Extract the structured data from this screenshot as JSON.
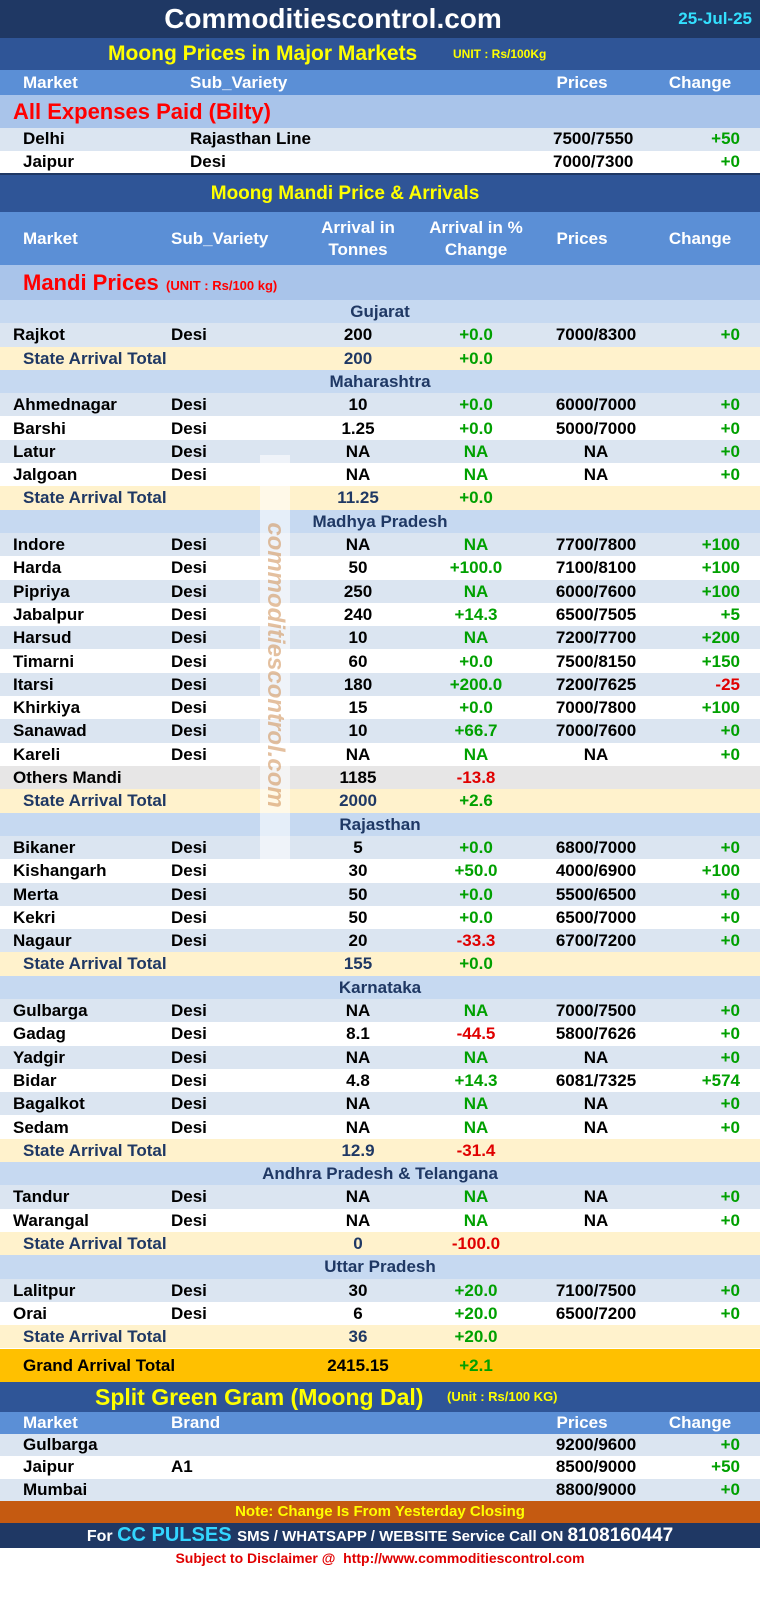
{
  "header": {
    "title": "Commoditiescontrol.com",
    "date": "25-Jul-25"
  },
  "major_markets": {
    "title": "Moong Prices in Major Markets",
    "unit": "UNIT : Rs/100Kg",
    "columns": [
      "Market",
      "Sub_Variety",
      "Prices",
      "Change"
    ],
    "section": "All Expenses Paid (Bilty)",
    "rows": [
      [
        "Delhi",
        "Rajasthan Line",
        "7500/7550",
        "+50"
      ],
      [
        "Jaipur",
        "Desi",
        "7000/7300",
        "+0"
      ]
    ]
  },
  "mandi": {
    "title": "Moong Mandi Price & Arrivals",
    "columns": [
      "Market",
      "Sub_Variety",
      "Arrival in Tonnes",
      "Arrival  in % Change",
      "Prices",
      "Change"
    ],
    "section": "Mandi Prices",
    "unit": "(UNIT : Rs/100 kg)",
    "states": [
      {
        "name": "Gujarat",
        "rows": [
          [
            "Rajkot",
            "Desi",
            "200",
            "+0.0",
            "7000/8300",
            "+0"
          ]
        ],
        "total": [
          "State Arrival Total",
          "200",
          "+0.0"
        ]
      },
      {
        "name": "Maharashtra",
        "rows": [
          [
            "Ahmednagar",
            "Desi",
            "10",
            "+0.0",
            "6000/7000",
            "+0"
          ],
          [
            "Barshi",
            "Desi",
            "1.25",
            "+0.0",
            "5000/7000",
            "+0"
          ],
          [
            "Latur",
            "Desi",
            "NA",
            "NA",
            "NA",
            "+0"
          ],
          [
            "Jalgoan",
            "Desi",
            "NA",
            "NA",
            "NA",
            "+0"
          ]
        ],
        "total": [
          "State Arrival Total",
          "11.25",
          "+0.0"
        ]
      },
      {
        "name": "Madhya Pradesh",
        "rows": [
          [
            "Indore",
            "Desi",
            "NA",
            "NA",
            "7700/7800",
            "+100"
          ],
          [
            "Harda",
            "Desi",
            "50",
            "+100.0",
            "7100/8100",
            "+100"
          ],
          [
            "Pipriya",
            "Desi",
            "250",
            "NA",
            "6000/7600",
            "+100"
          ],
          [
            "Jabalpur",
            "Desi",
            "240",
            "+14.3",
            "6500/7505",
            "+5"
          ],
          [
            "Harsud",
            "Desi",
            "10",
            "NA",
            "7200/7700",
            "+200"
          ],
          [
            "Timarni",
            "Desi",
            "60",
            "+0.0",
            "7500/8150",
            "+150"
          ],
          [
            "Itarsi",
            "Desi",
            "180",
            "+200.0",
            "7200/7625",
            "-25"
          ],
          [
            "Khirkiya",
            "Desi",
            "15",
            "+0.0",
            "7000/7800",
            "+100"
          ],
          [
            "Sanawad",
            "Desi",
            "10",
            "+66.7",
            "7000/7600",
            "+0"
          ],
          [
            "Kareli",
            "Desi",
            "NA",
            "NA",
            "NA",
            "+0"
          ],
          [
            "Others Mandi",
            null,
            "1185",
            "-13.8",
            null,
            null
          ]
        ],
        "total": [
          "State Arrival Total",
          "2000",
          "+2.6"
        ]
      },
      {
        "name": "Rajasthan",
        "rows": [
          [
            "Bikaner",
            "Desi",
            "5",
            "+0.0",
            "6800/7000",
            "+0"
          ],
          [
            "Kishangarh",
            "Desi",
            "30",
            "+50.0",
            "4000/6900",
            "+100"
          ],
          [
            "Merta",
            "Desi",
            "50",
            "+0.0",
            "5500/6500",
            "+0"
          ],
          [
            "Kekri",
            "Desi",
            "50",
            "+0.0",
            "6500/7000",
            "+0"
          ],
          [
            "Nagaur",
            "Desi",
            "20",
            "-33.3",
            "6700/7200",
            "+0"
          ]
        ],
        "total": [
          "State Arrival Total",
          "155",
          "+0.0"
        ]
      },
      {
        "name": "Karnataka",
        "rows": [
          [
            "Gulbarga",
            "Desi",
            "NA",
            "NA",
            "7000/7500",
            "+0"
          ],
          [
            "Gadag",
            "Desi",
            "8.1",
            "-44.5",
            "5800/7626",
            "+0"
          ],
          [
            "Yadgir",
            "Desi",
            "NA",
            "NA",
            "NA",
            "+0"
          ],
          [
            "Bidar",
            "Desi",
            "4.8",
            "+14.3",
            "6081/7325",
            "+574"
          ],
          [
            "Bagalkot",
            "Desi",
            "NA",
            "NA",
            "NA",
            "+0"
          ],
          [
            "Sedam",
            "Desi",
            "NA",
            "NA",
            "NA",
            "+0"
          ]
        ],
        "total": [
          "State Arrival Total",
          "12.9",
          "-31.4"
        ]
      },
      {
        "name": "Andhra Pradesh & Telangana",
        "rows": [
          [
            "Tandur",
            "Desi",
            "NA",
            "NA",
            "NA",
            "+0"
          ],
          [
            "Warangal",
            "Desi",
            "NA",
            "NA",
            "NA",
            "+0"
          ]
        ],
        "total": [
          "State Arrival Total",
          "0",
          "-100.0"
        ]
      },
      {
        "name": "Uttar Pradesh",
        "rows": [
          [
            "Lalitpur",
            "Desi",
            "30",
            "+20.0",
            "7100/7500",
            "+0"
          ],
          [
            "Orai",
            "Desi",
            "6",
            "+20.0",
            "6500/7200",
            "+0"
          ]
        ],
        "total": [
          "State Arrival Total",
          "36",
          "+20.0"
        ]
      }
    ],
    "grand_total": [
      "Grand Arrival Total",
      "2415.15",
      "+2.1"
    ]
  },
  "dal": {
    "title": "Split Green Gram (Moong Dal)",
    "unit": "(Unit : Rs/100 KG)",
    "columns": [
      "Market",
      "Brand",
      "Prices",
      "Change"
    ],
    "rows": [
      [
        "Gulbarga",
        null,
        "9200/9600",
        "+0"
      ],
      [
        "Jaipur",
        "A1",
        "8500/9000",
        "+50"
      ],
      [
        "Mumbai",
        null,
        "8800/9000",
        "+0"
      ]
    ]
  },
  "footer": {
    "note": "Note: Change Is From Yesterday Closing",
    "service": [
      "For",
      "CC PULSES",
      "SMS / WHATSAPP / WEBSITE Service Call  ON",
      "8108160447"
    ],
    "disclaimer": "Subject to Disclaimer @  http://www.commoditiescontrol.com"
  },
  "watermark": "commoditiescontrol.com"
}
